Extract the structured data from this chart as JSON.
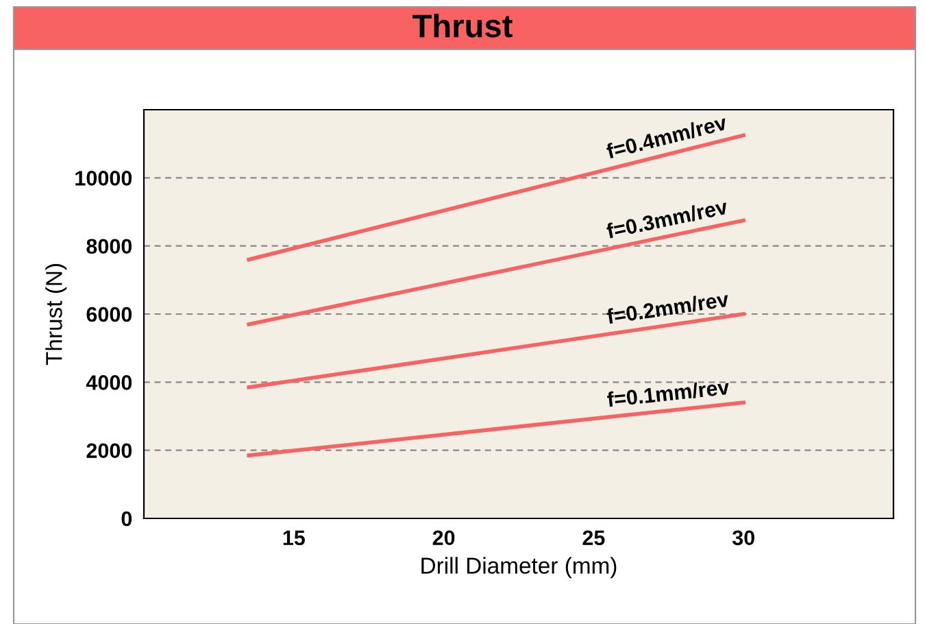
{
  "chart_data": {
    "type": "line",
    "title": "Thrust",
    "xlabel": "Drill Diameter (mm)",
    "ylabel": "Thrust (N)",
    "xlim": [
      10,
      35
    ],
    "xticks": [
      15,
      20,
      25,
      30
    ],
    "ylim": [
      0,
      12000
    ],
    "yticks": [
      0,
      2000,
      4000,
      6000,
      8000,
      10000
    ],
    "grid": "y",
    "marker": "none",
    "line_style": "solid",
    "x": [
      13.5,
      30
    ],
    "series": [
      {
        "name": "f=0.4mm/rev",
        "color": "#f96262",
        "values": [
          7600,
          11250
        ]
      },
      {
        "name": "f=0.3mm/rev",
        "color": "#f96262",
        "values": [
          5700,
          8750
        ]
      },
      {
        "name": "f=0.2mm/rev",
        "color": "#f96262",
        "values": [
          3850,
          6000
        ]
      },
      {
        "name": "f=0.1mm/rev",
        "color": "#f96262",
        "values": [
          1850,
          3400
        ]
      }
    ]
  }
}
